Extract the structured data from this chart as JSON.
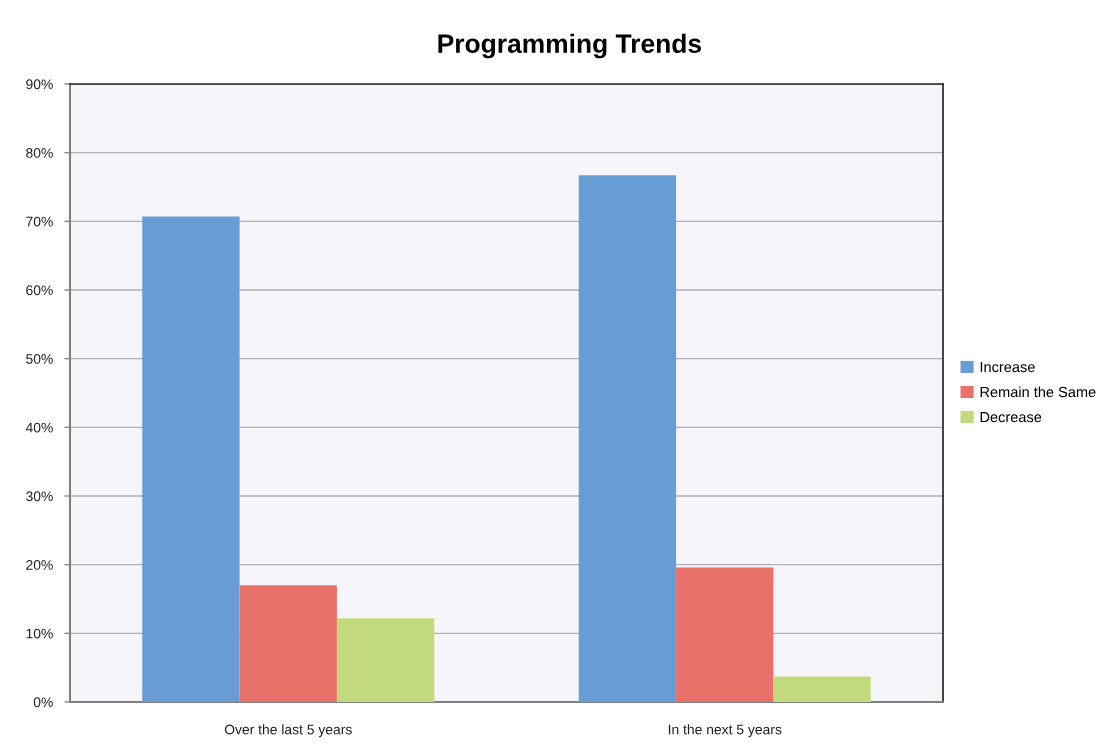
{
  "chart_data": {
    "type": "bar",
    "title": "Programming Trends",
    "categories": [
      "Over the last 5 years",
      "In the next 5 years"
    ],
    "series": [
      {
        "name": "Increase",
        "color": "#679cd4",
        "values": [
          70.7,
          76.7
        ]
      },
      {
        "name": "Remain the Same",
        "color": "#e8716a",
        "values": [
          17.0,
          19.6
        ]
      },
      {
        "name": "Decrease",
        "color": "#c2da7c",
        "values": [
          12.2,
          3.7
        ]
      }
    ],
    "ylim": [
      0,
      90
    ],
    "yticks": [
      {
        "value": 0,
        "label": "0%"
      },
      {
        "value": 10,
        "label": "10%"
      },
      {
        "value": 20,
        "label": "20%"
      },
      {
        "value": 30,
        "label": "30%"
      },
      {
        "value": 40,
        "label": "40%"
      },
      {
        "value": 50,
        "label": "50%"
      },
      {
        "value": 60,
        "label": "60%"
      },
      {
        "value": 70,
        "label": "70%"
      },
      {
        "value": 80,
        "label": "80%"
      },
      {
        "value": 90,
        "label": "90%"
      }
    ],
    "grid": "y",
    "legend": "right"
  }
}
